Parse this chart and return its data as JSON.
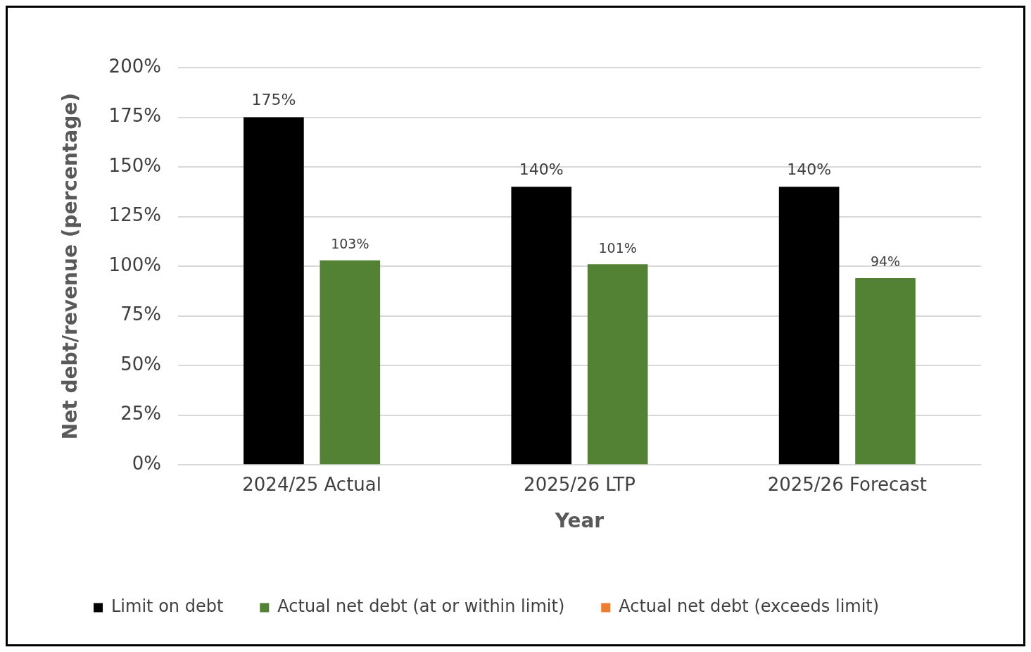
{
  "chart_data": {
    "type": "bar",
    "categories": [
      "2024/25 Actual",
      "2025/26 LTP",
      "2025/26 Forecast"
    ],
    "xlabel": "Year",
    "ylabel": "Net debt/revenue (percentage)",
    "series": [
      {
        "name": "Limit on debt",
        "color": "#000000",
        "values": [
          175,
          140,
          140
        ],
        "value_labels": [
          "175%",
          "140%",
          "140%"
        ]
      },
      {
        "name": "Actual net debt (at or within limit)",
        "color": "#548235",
        "values": [
          103,
          101,
          94
        ],
        "value_labels": [
          "103%",
          "101%",
          "94%"
        ]
      },
      {
        "name": "Actual net debt (exceeds limit)",
        "color": "#ed7d31",
        "values": [
          null,
          null,
          null
        ]
      }
    ],
    "ylim": [
      0,
      200
    ],
    "yticks": [
      {
        "value": 0,
        "label": "0%"
      },
      {
        "value": 25,
        "label": "25%"
      },
      {
        "value": 50,
        "label": "50%"
      },
      {
        "value": 75,
        "label": "75%"
      },
      {
        "value": 100,
        "label": "100%"
      },
      {
        "value": 125,
        "label": "125%"
      },
      {
        "value": 150,
        "label": "150%"
      },
      {
        "value": 175,
        "label": "175%"
      },
      {
        "value": 200,
        "label": "200%"
      }
    ],
    "grid": "y",
    "legend": "bottom"
  }
}
